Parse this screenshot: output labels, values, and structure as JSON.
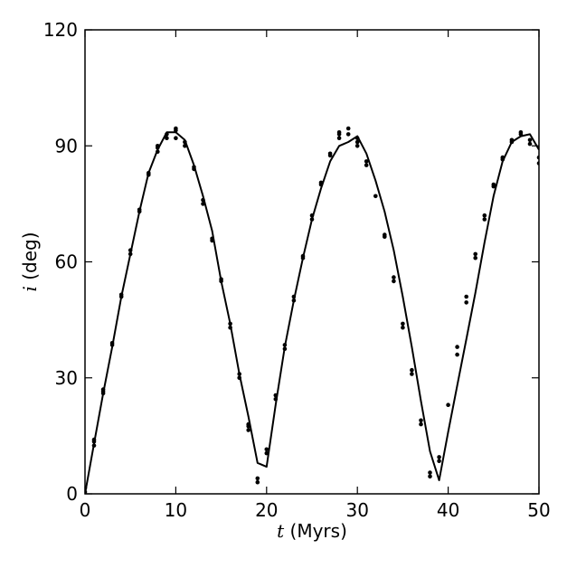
{
  "chart_data": {
    "type": "line",
    "xlabel": {
      "var": "t",
      "unit": " (Myrs)"
    },
    "ylabel": {
      "var": "i",
      "unit": " (deg)"
    },
    "xlim": [
      0,
      50
    ],
    "ylim": [
      0,
      120
    ],
    "xticks": [
      0,
      10,
      20,
      30,
      40,
      50
    ],
    "yticks": [
      0,
      30,
      60,
      90,
      120
    ],
    "grid": false,
    "series": [
      {
        "style": "line",
        "color": "#000000",
        "x": [
          0,
          1,
          2,
          3,
          4,
          5,
          6,
          7,
          8,
          9,
          10,
          11,
          12,
          13,
          14,
          15,
          16,
          17,
          18,
          19,
          20,
          21,
          22,
          23,
          24,
          25,
          26,
          27,
          28,
          29,
          30,
          31,
          32,
          33,
          34,
          35,
          36,
          37,
          38,
          39,
          40,
          41,
          42,
          43,
          44,
          45,
          46,
          47,
          48,
          49,
          50
        ],
        "y": [
          0,
          13,
          26,
          38,
          51,
          62,
          73,
          83,
          89,
          93.5,
          93.5,
          91.5,
          85,
          77,
          68,
          55,
          44,
          31,
          20,
          8,
          7,
          23,
          38,
          50,
          61,
          71,
          79,
          86,
          90,
          91,
          92.5,
          88,
          81,
          73,
          63,
          51,
          38,
          24,
          11,
          3.5,
          16,
          28,
          40,
          52,
          65,
          77,
          86,
          91,
          92.5,
          93,
          89
        ]
      },
      {
        "style": "points",
        "color": "#000000",
        "x": [
          0,
          0,
          1,
          1,
          1,
          2,
          2,
          2,
          3,
          3,
          4,
          4,
          5,
          5,
          6,
          6,
          7,
          7,
          8,
          8,
          8,
          9,
          9,
          10,
          10,
          10,
          11,
          11,
          12,
          12,
          13,
          13,
          14,
          14,
          15,
          15,
          16,
          16,
          17,
          17,
          18,
          18,
          18,
          19,
          19,
          20,
          20,
          21,
          21,
          22,
          22,
          23,
          23,
          24,
          24,
          25,
          25,
          26,
          26,
          27,
          27,
          28,
          28,
          28,
          29,
          29,
          30,
          30,
          30,
          31,
          31,
          32,
          33,
          33,
          34,
          34,
          35,
          35,
          36,
          36,
          37,
          37,
          38,
          38,
          39,
          39,
          40,
          41,
          41,
          42,
          42,
          43,
          43,
          44,
          44,
          45,
          45,
          46,
          46,
          47,
          47,
          48,
          48,
          49,
          49,
          50,
          50
        ],
        "y": [
          0.5,
          1.5,
          12.5,
          13.5,
          14,
          26,
          27,
          26.5,
          38.5,
          39,
          51,
          51.5,
          62,
          63,
          73,
          73.5,
          82.5,
          83,
          88.5,
          89.5,
          90,
          92,
          93,
          92,
          94,
          94.5,
          90,
          91,
          84,
          84.5,
          75,
          76,
          65.5,
          66,
          55,
          55.5,
          43,
          44,
          30,
          31,
          16.5,
          17.5,
          18,
          3,
          4,
          10.5,
          11.5,
          24.5,
          25.5,
          37.5,
          38.5,
          50,
          51,
          61,
          61.5,
          71,
          72,
          80,
          80.5,
          87.5,
          88,
          92,
          93,
          93.5,
          93,
          94.5,
          90,
          91,
          92,
          85,
          86,
          77,
          66.5,
          67,
          55,
          56,
          43,
          44,
          31,
          32,
          18,
          19,
          4.5,
          5.5,
          8.5,
          9.5,
          23,
          36,
          38,
          49.5,
          51,
          61,
          62,
          71,
          72,
          79.5,
          80,
          86.5,
          87,
          91,
          91.5,
          93,
          93.5,
          90.5,
          91.5,
          85.5,
          87
        ]
      }
    ]
  }
}
